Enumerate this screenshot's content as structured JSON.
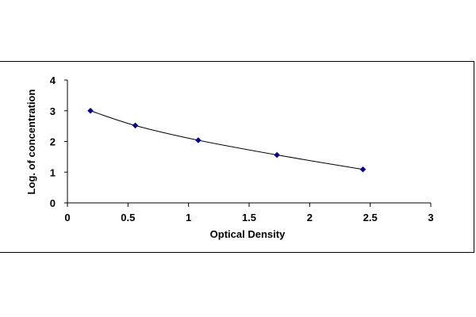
{
  "chart_data": {
    "type": "scatter",
    "title": "",
    "xlabel": "Optical Density",
    "ylabel": "Log. of concentration",
    "xlim": [
      0,
      3
    ],
    "ylim": [
      0,
      4
    ],
    "x_ticks": [
      "0",
      "0.5",
      "1",
      "1.5",
      "2",
      "2.5",
      "3"
    ],
    "y_ticks": [
      "0",
      "1",
      "2",
      "3",
      "4"
    ],
    "grid": false,
    "legend": "none",
    "series": [
      {
        "x": [
          0.19,
          0.56,
          1.08,
          1.73,
          2.44
        ],
        "y": [
          3.0,
          2.52,
          2.04,
          1.56,
          1.09
        ],
        "marker": "diamond",
        "trendline": "smooth"
      }
    ],
    "colors": {
      "marker": "#00008b",
      "line": "#000000"
    }
  }
}
